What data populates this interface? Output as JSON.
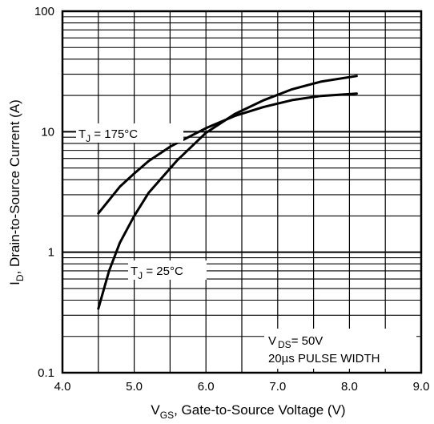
{
  "chart_data": {
    "type": "line",
    "xlabel": {
      "main": "V",
      "sub": "GS",
      "rest": ", Gate-to-Source Voltage (V)"
    },
    "ylabel": {
      "main": "I",
      "sub": "D",
      "rest": ",  Drain-to-Source Current (A)"
    },
    "xlim": [
      4.0,
      9.0
    ],
    "ylim": [
      0.1,
      100
    ],
    "yscale": "log",
    "grid": true,
    "x_ticks": [
      "4.0",
      "5.0",
      "6.0",
      "7.0",
      "8.0",
      "9.0"
    ],
    "y_ticks": [
      "0.1",
      "1",
      "10",
      "100"
    ],
    "series": [
      {
        "label": {
          "main": "T",
          "sub": "J",
          "rest": " = 175°C"
        },
        "x": [
          4.5,
          4.8,
          5.0,
          5.2,
          5.5,
          5.8,
          6.0,
          6.4,
          6.8,
          7.2,
          7.6,
          8.1
        ],
        "y": [
          2.1,
          3.5,
          4.5,
          5.7,
          7.5,
          9.3,
          10.7,
          13.5,
          16.0,
          18.3,
          19.8,
          20.7
        ]
      },
      {
        "label": {
          "main": "T",
          "sub": "J",
          "rest": " = 25°C"
        },
        "x": [
          4.5,
          4.65,
          4.8,
          5.0,
          5.2,
          5.6,
          6.0,
          6.4,
          6.8,
          7.2,
          7.6,
          8.1
        ],
        "y": [
          0.34,
          0.7,
          1.2,
          2.0,
          3.1,
          5.8,
          9.8,
          14.0,
          18.2,
          22.5,
          26.0,
          29.0
        ]
      }
    ],
    "annotation": {
      "line1_prefix": "V",
      "line1_sub": "DS",
      "line1_rest": "= 50V",
      "line2": "20µs PULSE WIDTH"
    }
  }
}
